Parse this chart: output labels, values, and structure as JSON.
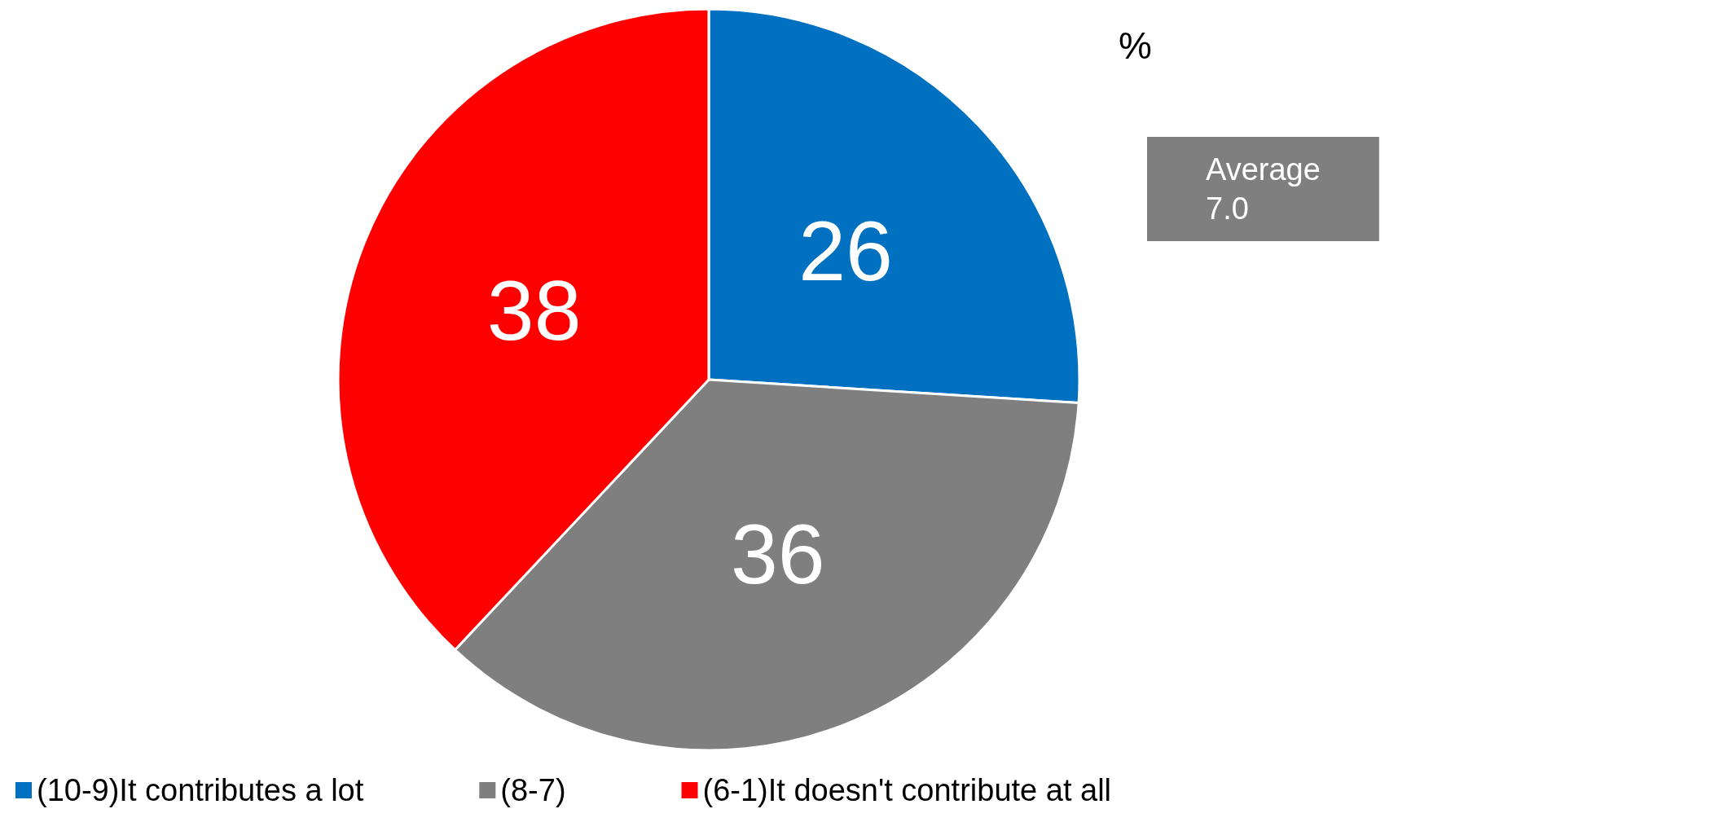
{
  "chart_data": {
    "type": "pie",
    "title": "%",
    "categories": [
      "(10-9)It contributes a lot",
      "(8-7)",
      "(6-1)It doesn't contribute at all"
    ],
    "values": [
      26,
      36,
      38
    ],
    "colors": [
      "#0070c0",
      "#7f7f7f",
      "#ff0000"
    ],
    "data_labels": true,
    "legend": "bottom",
    "annotations": [
      "Average\n7.0"
    ]
  }
}
